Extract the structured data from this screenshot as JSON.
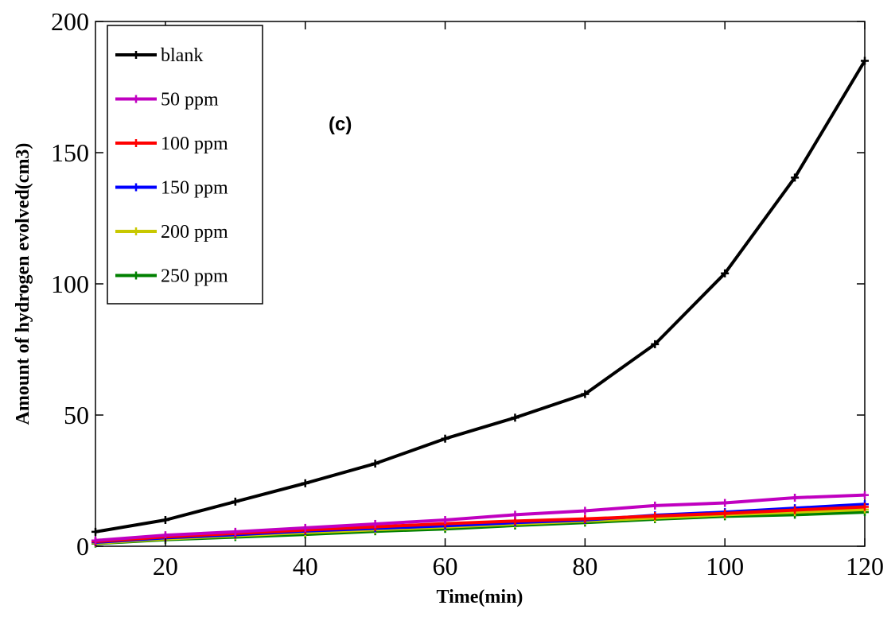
{
  "chart_data": {
    "type": "line",
    "annotation": "(c)",
    "xlabel": "Time(min)",
    "ylabel": "Amount of hydrogen evolved(cm3)",
    "xlim": [
      10,
      120
    ],
    "ylim": [
      0,
      200
    ],
    "x_ticks": [
      20,
      40,
      60,
      80,
      100,
      120
    ],
    "y_ticks": [
      0,
      50,
      100,
      150,
      200
    ],
    "grid": false,
    "legend_position": "top-left",
    "x": [
      10,
      20,
      30,
      40,
      50,
      60,
      70,
      80,
      90,
      100,
      110,
      120
    ],
    "series": [
      {
        "name": "blank",
        "color": "#000000",
        "values": [
          5.5,
          10,
          17,
          24,
          31.5,
          41,
          49,
          58,
          77,
          104,
          140.5,
          185
        ]
      },
      {
        "name": "50 ppm",
        "color": "#c000c0",
        "values": [
          2.2,
          4.2,
          5.5,
          7,
          8.5,
          10,
          12,
          13.5,
          15.5,
          16.5,
          18.5,
          19.5
        ]
      },
      {
        "name": "100 ppm",
        "color": "#ff0000",
        "values": [
          1.8,
          3.6,
          4.9,
          6.2,
          7.4,
          8.6,
          9.6,
          10.4,
          11.5,
          12.5,
          13.8,
          15
        ]
      },
      {
        "name": "150 ppm",
        "color": "#0000ff",
        "values": [
          1.5,
          3.2,
          4.4,
          5.8,
          6.8,
          7.8,
          9,
          10,
          11.8,
          13,
          14.5,
          16
        ]
      },
      {
        "name": "200 ppm",
        "color": "#c8c800",
        "values": [
          1.2,
          2.8,
          4,
          5.2,
          6.3,
          7.3,
          8.5,
          9.6,
          10.8,
          12,
          13,
          14
        ]
      },
      {
        "name": "250 ppm",
        "color": "#008000",
        "values": [
          1,
          2.5,
          3.5,
          4.5,
          5.7,
          6.6,
          7.9,
          9,
          10.3,
          11.4,
          12,
          13
        ]
      }
    ]
  }
}
